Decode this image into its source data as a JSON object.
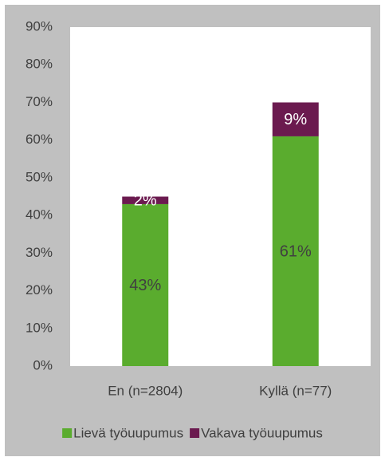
{
  "chart_data": {
    "type": "stacked_bar",
    "categories": [
      "En (n=2804)",
      "Kyllä (n=77)"
    ],
    "series": [
      {
        "name": "Lievä työuupumus",
        "color": "#5aac2e",
        "values": [
          43,
          61
        ],
        "value_labels": [
          "43%",
          "61%"
        ]
      },
      {
        "name": "Vakava työuupumus",
        "color": "#6b1a4f",
        "values": [
          2,
          9
        ],
        "value_labels": [
          "2%",
          "9%"
        ]
      }
    ],
    "ylim": [
      0,
      90
    ],
    "yticks": [
      {
        "value": 0,
        "label": "0%"
      },
      {
        "value": 10,
        "label": "10%"
      },
      {
        "value": 20,
        "label": "20%"
      },
      {
        "value": 30,
        "label": "30%"
      },
      {
        "value": 40,
        "label": "40%"
      },
      {
        "value": 50,
        "label": "50%"
      },
      {
        "value": 60,
        "label": "60%"
      },
      {
        "value": 70,
        "label": "70%"
      },
      {
        "value": 80,
        "label": "80%"
      },
      {
        "value": 90,
        "label": "90%"
      }
    ],
    "grid": false,
    "legend": "bottom"
  }
}
